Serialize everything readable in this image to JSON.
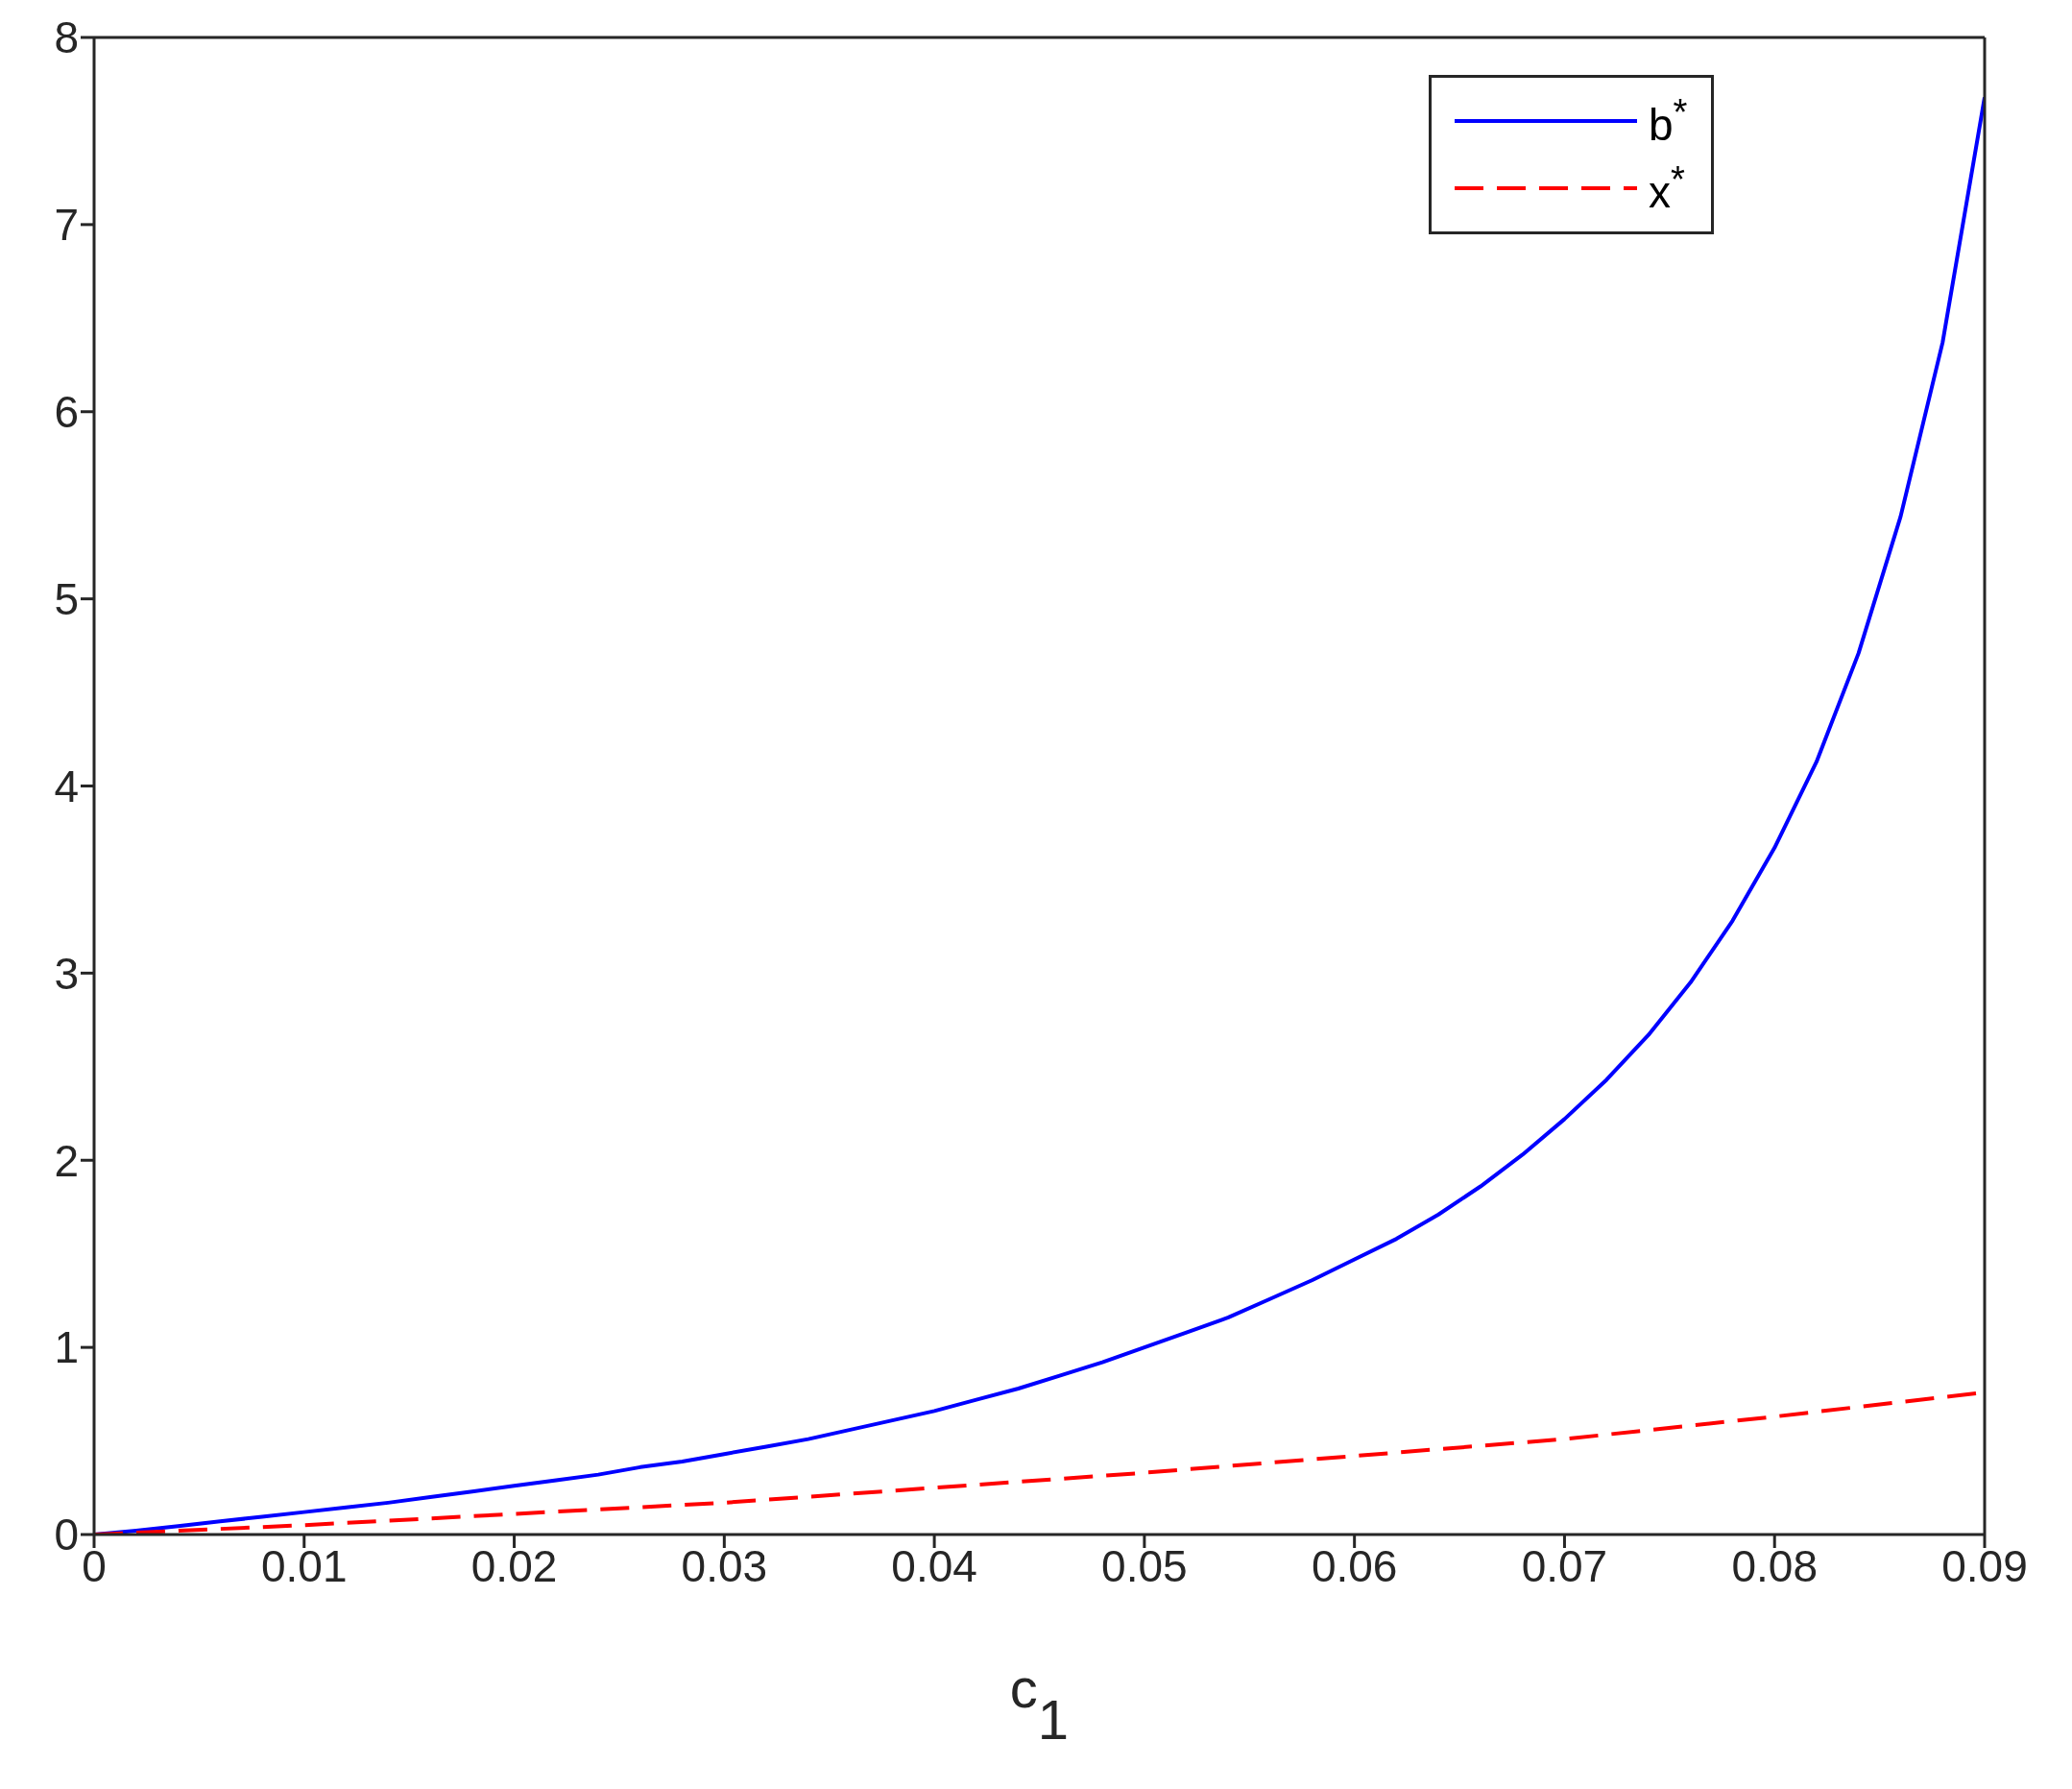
{
  "chart_data": {
    "type": "line",
    "xlabel": "c$_{1}$",
    "x": [
      0,
      0.002,
      0.004,
      0.006,
      0.008,
      0.01,
      0.012,
      0.014,
      0.016,
      0.018,
      0.02,
      0.022,
      0.024,
      0.026,
      0.028,
      0.03,
      0.032,
      0.034,
      0.036,
      0.038,
      0.04,
      0.042,
      0.044,
      0.046,
      0.048,
      0.05,
      0.052,
      0.054,
      0.056,
      0.058,
      0.06,
      0.062,
      0.064,
      0.066,
      0.068,
      0.07,
      0.072,
      0.074,
      0.076,
      0.078,
      0.08,
      0.082,
      0.084,
      0.086,
      0.088,
      0.09
    ],
    "series": [
      {
        "name": "b$^{*}$",
        "color": "#0000ff",
        "line_style": "solid",
        "values": [
          0,
          0.02,
          0.045,
          0.07,
          0.095,
          0.12,
          0.145,
          0.17,
          0.2,
          0.23,
          0.26,
          0.29,
          0.32,
          0.36,
          0.39,
          0.43,
          0.47,
          0.51,
          0.56,
          0.61,
          0.66,
          0.72,
          0.78,
          0.85,
          0.92,
          1.0,
          1.08,
          1.16,
          1.26,
          1.36,
          1.47,
          1.58,
          1.71,
          1.86,
          2.03,
          2.22,
          2.43,
          2.67,
          2.95,
          3.28,
          3.67,
          4.13,
          4.71,
          5.44,
          6.37,
          7.68
        ]
      },
      {
        "name": "x$^{*}$",
        "color": "#ff0000",
        "line_style": "dashed",
        "x": [
          0,
          0.01,
          0.02,
          0.03,
          0.04,
          0.05,
          0.06,
          0.07,
          0.08,
          0.09
        ],
        "values": [
          0,
          0.05,
          0.11,
          0.17,
          0.25,
          0.33,
          0.42,
          0.51,
          0.63,
          0.76
        ]
      }
    ],
    "xlim": [
      0,
      0.09
    ],
    "xticks": [
      0,
      0.01,
      0.02,
      0.03,
      0.04,
      0.05,
      0.06,
      0.07,
      0.08,
      0.09
    ],
    "ylim": [
      0,
      8
    ],
    "yticks": [
      0,
      1,
      2,
      3,
      4,
      5,
      6,
      7,
      8
    ],
    "legend": "top right",
    "marker": "none"
  }
}
